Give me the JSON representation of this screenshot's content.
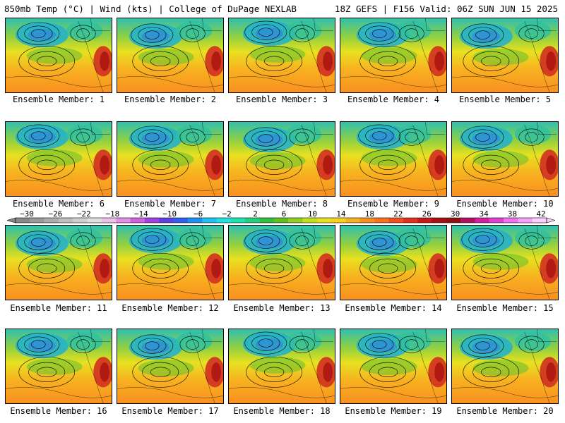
{
  "header": {
    "left": "850mb Temp (°C) | Wind (kts) | College of DuPage NEXLAB",
    "right": "18Z GEFS | F156 Valid: 06Z SUN JUN 15 2025"
  },
  "caption_prefix": "Ensemble Member:",
  "members": [
    1,
    2,
    3,
    4,
    5,
    6,
    7,
    8,
    9,
    10,
    11,
    12,
    13,
    14,
    15,
    16,
    17,
    18,
    19,
    20
  ],
  "colorbar": {
    "labels": [
      "−30",
      "−26",
      "−22",
      "−18",
      "−14",
      "−10",
      "−6",
      "−2",
      "2",
      "6",
      "10",
      "14",
      "18",
      "22",
      "26",
      "30",
      "34",
      "38",
      "42"
    ],
    "colors": [
      "#888888",
      "#9a9a9a",
      "#adadad",
      "#bfbfbf",
      "#d0d0d0",
      "#e0e0e0",
      "#e9c3e9",
      "#e090e6",
      "#d060e0",
      "#a040e0",
      "#6040e0",
      "#3060f0",
      "#2090f0",
      "#20c0f0",
      "#20e0e0",
      "#20e0b0",
      "#20d080",
      "#30c040",
      "#60c020",
      "#90d020",
      "#c0e020",
      "#e8e020",
      "#f8d020",
      "#f8b020",
      "#f89020",
      "#f87020",
      "#f05020",
      "#e03020",
      "#c81818",
      "#a81010",
      "#901010",
      "#b01060",
      "#d020a0",
      "#e040d0",
      "#f070f0",
      "#f8a0f8",
      "#fcd0fc"
    ]
  }
}
